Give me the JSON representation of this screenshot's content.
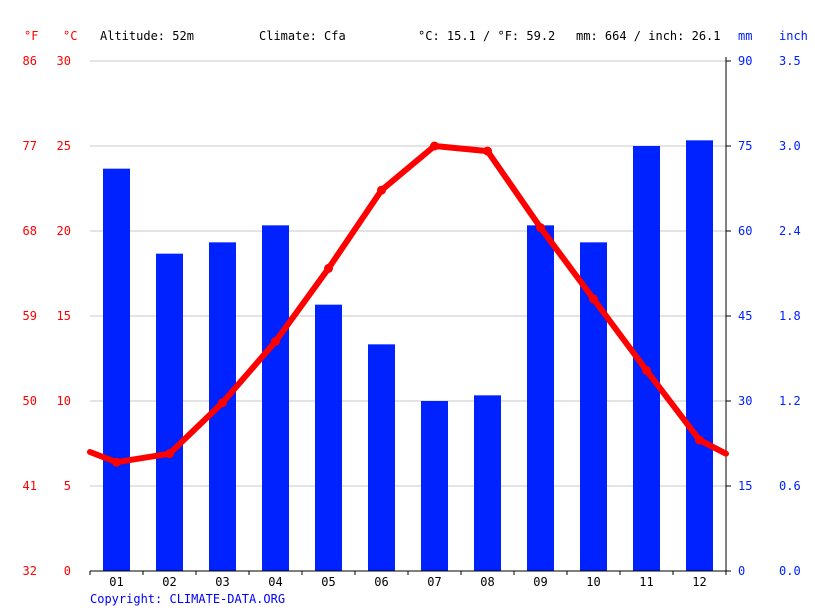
{
  "header": {
    "unit_f": "°F",
    "unit_c": "°C",
    "altitude": "Altitude: 52m",
    "climate": "Climate: Cfa",
    "temp_summary": "°C: 15.1 / °F: 59.2",
    "precip_summary": "mm: 664 / inch: 26.1",
    "unit_mm": "mm",
    "unit_inch": "inch"
  },
  "copyright": "Copyright: CLIMATE-DATA.ORG",
  "colors": {
    "temperature": "#ff0000",
    "precipitation": "#0022ff",
    "grid": "#c8c8c8",
    "axis": "#000000"
  },
  "chart_data": {
    "type": "bar+line",
    "categories": [
      "01",
      "02",
      "03",
      "04",
      "05",
      "06",
      "07",
      "08",
      "09",
      "10",
      "11",
      "12"
    ],
    "series": [
      {
        "axis": "right",
        "type": "bar",
        "unit": "mm",
        "values": [
          71,
          56,
          58,
          61,
          47,
          40,
          30,
          31,
          61,
          58,
          75,
          76
        ]
      },
      {
        "axis": "left",
        "type": "line",
        "unit": "°C",
        "values": [
          6.4,
          6.9,
          9.9,
          13.5,
          17.8,
          22.4,
          25.0,
          24.7,
          20.2,
          16.0,
          11.8,
          7.7
        ],
        "edge_start": 7.0,
        "edge_end": 6.9
      }
    ],
    "left_axis_c": {
      "min": 0,
      "max": 30,
      "ticks": [
        0,
        5,
        10,
        15,
        20,
        25,
        30
      ]
    },
    "left_axis_f_labels": [
      "32",
      "41",
      "50",
      "59",
      "68",
      "77",
      "86"
    ],
    "right_axis_mm": {
      "min": 0,
      "max": 90,
      "ticks": [
        0,
        15,
        30,
        45,
        60,
        75,
        90
      ]
    },
    "right_axis_inch_labels": [
      "0.0",
      "0.6",
      "1.2",
      "1.8",
      "2.4",
      "3.0",
      "3.5"
    ],
    "grid": true
  }
}
